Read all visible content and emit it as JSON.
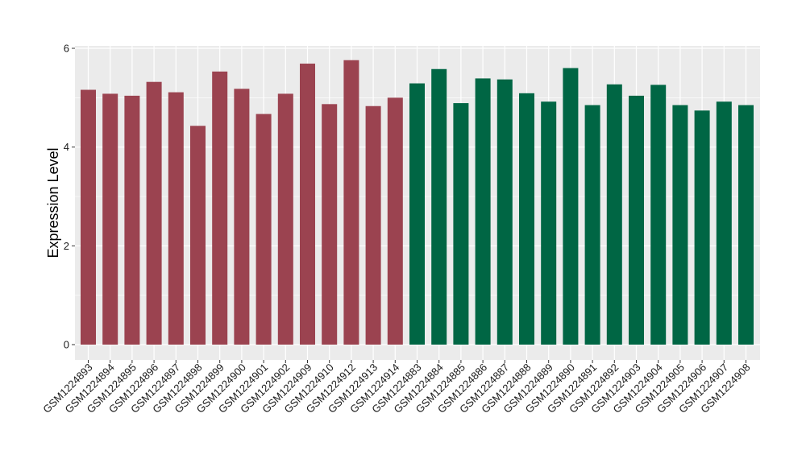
{
  "chart_data": {
    "type": "bar",
    "title": "",
    "xlabel": "",
    "ylabel": "Expression Level",
    "ylim": [
      0,
      6
    ],
    "yticks": [
      0,
      2,
      4,
      6
    ],
    "grid": true,
    "legend": "none",
    "colors": {
      "group_a": "#9b4350",
      "group_b": "#006644",
      "panel_bg": "#ebebeb",
      "gridline": "#ffffff"
    },
    "categories": [
      "GSM1224893",
      "GSM1224894",
      "GSM1224895",
      "GSM1224896",
      "GSM1224897",
      "GSM1224898",
      "GSM1224899",
      "GSM1224900",
      "GSM1224901",
      "GSM1224902",
      "GSM1224909",
      "GSM1224910",
      "GSM1224912",
      "GSM1224913",
      "GSM1224914",
      "GSM1224883",
      "GSM1224884",
      "GSM1224885",
      "GSM1224886",
      "GSM1224887",
      "GSM1224888",
      "GSM1224889",
      "GSM1224890",
      "GSM1224891",
      "GSM1224892",
      "GSM1224903",
      "GSM1224904",
      "GSM1224905",
      "GSM1224906",
      "GSM1224907",
      "GSM1224908"
    ],
    "values": [
      5.16,
      5.08,
      5.04,
      5.32,
      5.11,
      4.43,
      5.53,
      5.18,
      4.67,
      5.08,
      5.69,
      4.87,
      5.76,
      4.83,
      5.0,
      5.29,
      5.58,
      4.89,
      5.39,
      5.37,
      5.09,
      4.92,
      5.6,
      4.85,
      5.27,
      5.04,
      5.26,
      4.85,
      4.74,
      4.92,
      4.85
    ],
    "bar_groups": [
      "group_a",
      "group_a",
      "group_a",
      "group_a",
      "group_a",
      "group_a",
      "group_a",
      "group_a",
      "group_a",
      "group_a",
      "group_a",
      "group_a",
      "group_a",
      "group_a",
      "group_a",
      "group_b",
      "group_b",
      "group_b",
      "group_b",
      "group_b",
      "group_b",
      "group_b",
      "group_b",
      "group_b",
      "group_b",
      "group_b",
      "group_b",
      "group_b",
      "group_b",
      "group_b",
      "group_b"
    ]
  }
}
